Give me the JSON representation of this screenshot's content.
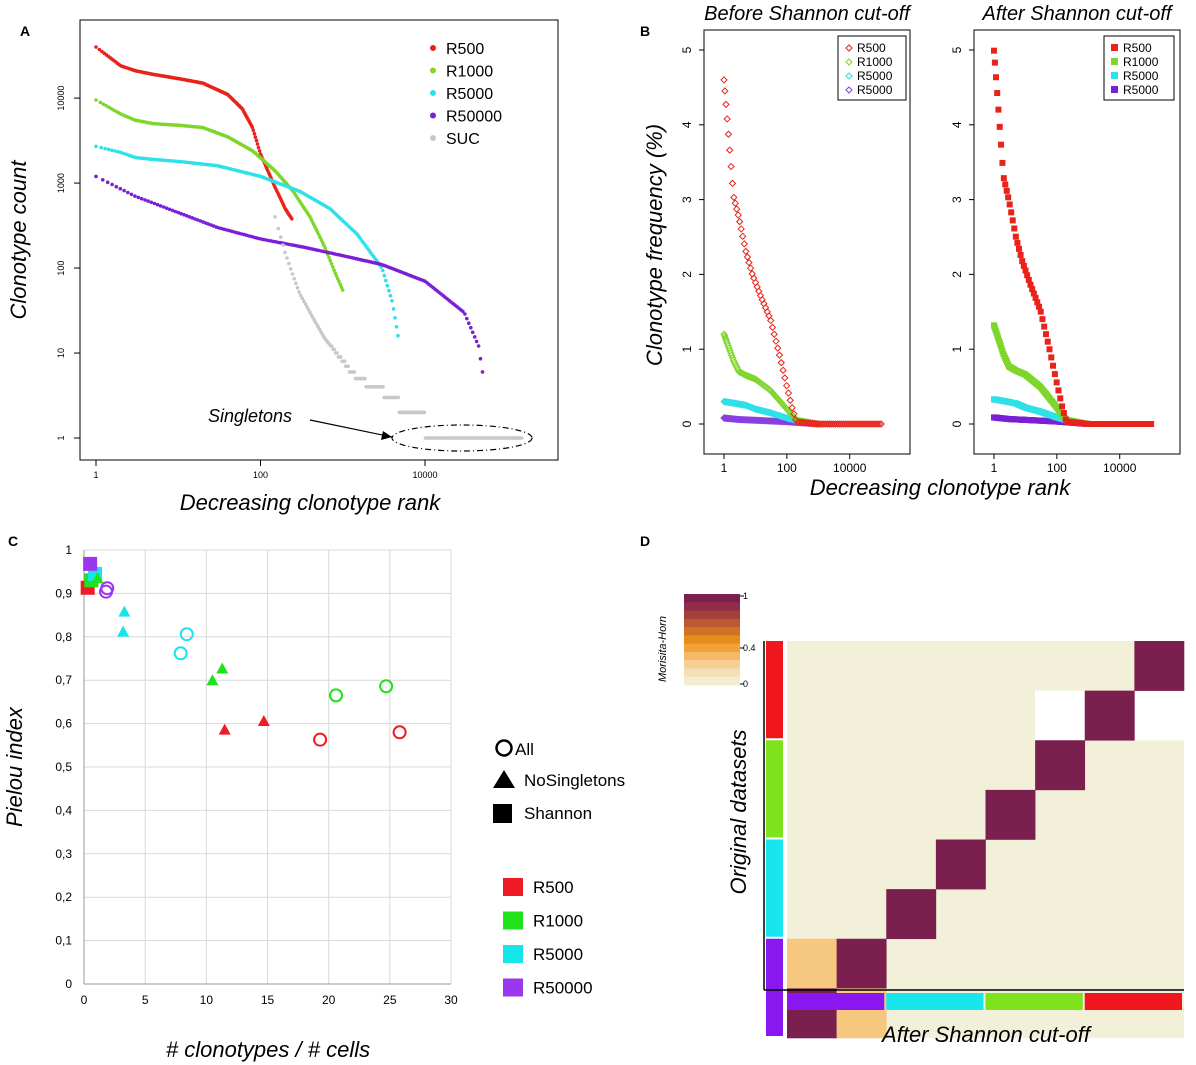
{
  "panels": {
    "a": {
      "label": "A"
    },
    "b": {
      "label": "B"
    },
    "c": {
      "label": "C"
    },
    "d": {
      "label": "D"
    }
  },
  "chart_data": [
    {
      "id": "A",
      "type": "line",
      "scale": "log-log",
      "xlabel": "Decreasing clonotype rank",
      "ylabel": "Clonotype count",
      "xticks": [
        "1",
        "100",
        "10000"
      ],
      "yticks": [
        "1",
        "10",
        "100",
        "1000",
        "10000"
      ],
      "xlim": [
        1,
        200000
      ],
      "ylim": [
        0.7,
        60000
      ],
      "annotation": "Singletons",
      "series": [
        {
          "name": "R500",
          "color": "#e8231b",
          "x": [
            1,
            2,
            3,
            5,
            10,
            20,
            40,
            60,
            80,
            100,
            150,
            200,
            240
          ],
          "y": [
            40000,
            24000,
            21000,
            19000,
            17000,
            15000,
            11000,
            7500,
            4500,
            2200,
            900,
            500,
            380
          ]
        },
        {
          "name": "R1000",
          "color": "#7fd62b",
          "x": [
            1,
            2,
            3,
            5,
            10,
            20,
            40,
            80,
            150,
            250,
            400,
            600,
            800,
            1000
          ],
          "y": [
            9500,
            6500,
            5500,
            5000,
            4800,
            4500,
            3500,
            2400,
            1400,
            800,
            400,
            180,
            90,
            55
          ]
        },
        {
          "name": "R5000",
          "color": "#2ee0e8",
          "x": [
            1,
            2,
            3,
            5,
            10,
            30,
            100,
            300,
            700,
            1500,
            3000,
            4000,
            4700
          ],
          "y": [
            2700,
            2300,
            2000,
            1900,
            1800,
            1600,
            1200,
            800,
            500,
            250,
            100,
            40,
            16
          ]
        },
        {
          "name": "R50000",
          "color": "#7b1fd6",
          "x": [
            1,
            3,
            10,
            30,
            100,
            300,
            1000,
            3000,
            10000,
            30000,
            45000,
            50000
          ],
          "y": [
            1200,
            700,
            450,
            300,
            220,
            180,
            140,
            110,
            70,
            30,
            12,
            6
          ]
        },
        {
          "name": "SUC",
          "color": "#c8c8c8",
          "x": [
            150,
            200,
            250,
            300,
            400,
            600,
            1000,
            1500,
            2500,
            4000,
            6000,
            10000,
            20000,
            50000,
            150000
          ],
          "y": [
            400,
            150,
            80,
            50,
            30,
            15,
            8,
            5,
            4,
            3,
            2,
            1.5,
            1.2,
            1,
            1
          ]
        }
      ]
    },
    {
      "id": "B",
      "type": "scatter",
      "ylabel": "Clonotype frequency (%)",
      "xlabel": "Decreasing clonotype rank",
      "xticks": [
        "1",
        "100",
        "10000"
      ],
      "yticks": [
        "0",
        "1",
        "2",
        "3",
        "4",
        "5"
      ],
      "ylim": [
        0,
        5.2
      ],
      "subplots": [
        {
          "title": "Before Shannon cut-off",
          "marker": "open-diamond",
          "legend": [
            {
              "name": "R500",
              "color": "#e8231b"
            },
            {
              "name": "R1000",
              "color": "#7fd62b"
            },
            {
              "name": "R5000",
              "color": "#2ee0e8"
            },
            {
              "name": "R5000",
              "color": "#8a3fe0"
            }
          ]
        },
        {
          "title": "After Shannon cut-off",
          "marker": "filled-square",
          "legend": [
            {
              "name": "R500",
              "color": "#e8231b"
            },
            {
              "name": "R1000",
              "color": "#7fd62b"
            },
            {
              "name": "R5000",
              "color": "#2ee0e8"
            },
            {
              "name": "R5000",
              "color": "#7b1fd6"
            }
          ]
        }
      ],
      "series": [
        {
          "name": "R500",
          "x": [
            1,
            2,
            3,
            5,
            8,
            15,
            30,
            60,
            100,
            150,
            200,
            1000,
            100000
          ],
          "y": [
            4.6,
            3.05,
            2.75,
            2.3,
            2.0,
            1.7,
            1.4,
            0.9,
            0.5,
            0.2,
            0.03,
            0.0,
            0.0
          ]
        },
        {
          "name": "R1000",
          "x": [
            1,
            2,
            3,
            5,
            10,
            30,
            100,
            200,
            1000
          ],
          "y": [
            1.2,
            0.85,
            0.7,
            0.65,
            0.6,
            0.45,
            0.2,
            0.05,
            0.0
          ]
        },
        {
          "name": "R5000",
          "x": [
            1,
            2,
            5,
            10,
            30,
            100,
            300,
            1000
          ],
          "y": [
            0.3,
            0.28,
            0.25,
            0.2,
            0.15,
            0.08,
            0.03,
            0.0
          ]
        },
        {
          "name": "R50000",
          "x": [
            1,
            3,
            10,
            100,
            1000
          ],
          "y": [
            0.08,
            0.06,
            0.05,
            0.03,
            0.0
          ]
        }
      ]
    },
    {
      "id": "C",
      "type": "scatter",
      "xlabel": "# clonotypes / # cells",
      "ylabel": "Pielou index",
      "xlim": [
        0,
        30
      ],
      "ylim": [
        0,
        1
      ],
      "xticks": [
        "0",
        "5",
        "10",
        "15",
        "20",
        "25",
        "30"
      ],
      "yticks": [
        "0",
        "0,1",
        "0,2",
        "0,3",
        "0,4",
        "0,5",
        "0,6",
        "0,7",
        "0,8",
        "0,9",
        "1"
      ],
      "legend_shapes": [
        "All",
        "NoSingletons",
        "Shannon"
      ],
      "legend_colors": [
        {
          "name": "R500",
          "color": "#ee1c24"
        },
        {
          "name": "R1000",
          "color": "#1fe21a"
        },
        {
          "name": "R5000",
          "color": "#16e5ea"
        },
        {
          "name": "R50000",
          "color": "#9b37ef"
        }
      ],
      "points": [
        {
          "dataset": "R500",
          "shape": "All",
          "x": 19.3,
          "y": 0.563
        },
        {
          "dataset": "R500",
          "shape": "All",
          "x": 25.8,
          "y": 0.58
        },
        {
          "dataset": "R500",
          "shape": "NoSingletons",
          "x": 11.5,
          "y": 0.586
        },
        {
          "dataset": "R500",
          "shape": "NoSingletons",
          "x": 14.7,
          "y": 0.606
        },
        {
          "dataset": "R500",
          "shape": "Shannon",
          "x": 0.3,
          "y": 0.913
        },
        {
          "dataset": "R1000",
          "shape": "All",
          "x": 20.6,
          "y": 0.665
        },
        {
          "dataset": "R1000",
          "shape": "All",
          "x": 24.7,
          "y": 0.686
        },
        {
          "dataset": "R1000",
          "shape": "NoSingletons",
          "x": 10.5,
          "y": 0.7
        },
        {
          "dataset": "R1000",
          "shape": "NoSingletons",
          "x": 11.3,
          "y": 0.727
        },
        {
          "dataset": "R1000",
          "shape": "Shannon",
          "x": 0.6,
          "y": 0.93
        },
        {
          "dataset": "R5000",
          "shape": "All",
          "x": 7.9,
          "y": 0.762
        },
        {
          "dataset": "R5000",
          "shape": "All",
          "x": 8.4,
          "y": 0.806
        },
        {
          "dataset": "R5000",
          "shape": "NoSingletons",
          "x": 3.2,
          "y": 0.812
        },
        {
          "dataset": "R5000",
          "shape": "NoSingletons",
          "x": 3.3,
          "y": 0.858
        },
        {
          "dataset": "R5000",
          "shape": "Shannon",
          "x": 0.9,
          "y": 0.945
        },
        {
          "dataset": "R5000",
          "shape": "NoSingletons",
          "x": 0.8,
          "y": 0.94
        },
        {
          "dataset": "R50000",
          "shape": "All",
          "x": 1.8,
          "y": 0.904
        },
        {
          "dataset": "R50000",
          "shape": "All",
          "x": 1.9,
          "y": 0.912
        },
        {
          "dataset": "R50000",
          "shape": "Shannon",
          "x": 0.5,
          "y": 0.968
        },
        {
          "dataset": "R1000",
          "shape": "NoSingletons",
          "x": 1.1,
          "y": 0.935
        }
      ]
    },
    {
      "id": "D",
      "type": "heatmap",
      "xlabel": "After Shannon cut-off",
      "ylabel": "Original datasets",
      "colorbar_label": "Morisita-Horn",
      "colorbar_ticks": [
        "1",
        "0.4",
        "0"
      ],
      "column_groups": [
        {
          "name": "R50000",
          "color": "#8a17f0"
        },
        {
          "name": "R5000",
          "color": "#18e6ee"
        },
        {
          "name": "R1000",
          "color": "#7ee21c"
        },
        {
          "name": "R500",
          "color": "#f0161e"
        }
      ],
      "row_groups_top_to_bottom": [
        {
          "name": "R500",
          "color": "#f0161e"
        },
        {
          "name": "R1000",
          "color": "#7ee21c"
        },
        {
          "name": "R5000",
          "color": "#18e6ee"
        },
        {
          "name": "R50000",
          "color": "#8a17f0"
        }
      ],
      "background_value": 0,
      "high_cells": [
        {
          "row": 0,
          "col": 7,
          "value": 1.0
        },
        {
          "row": 1,
          "col": 6,
          "value": 1.0
        },
        {
          "row": 2,
          "col": 5,
          "value": 1.0
        },
        {
          "row": 3,
          "col": 4,
          "value": 1.0
        },
        {
          "row": 4,
          "col": 3,
          "value": 1.0
        },
        {
          "row": 5,
          "col": 2,
          "value": 1.0
        },
        {
          "row": 6,
          "col": 0,
          "value": 0.35
        },
        {
          "row": 6,
          "col": 1,
          "value": 1.0
        },
        {
          "row": 7,
          "col": 0,
          "value": 1.0
        },
        {
          "row": 7,
          "col": 1,
          "value": 0.35
        }
      ],
      "missing_cells": [
        {
          "row": 1,
          "col": 5
        },
        {
          "row": 1,
          "col": 7
        }
      ]
    }
  ]
}
